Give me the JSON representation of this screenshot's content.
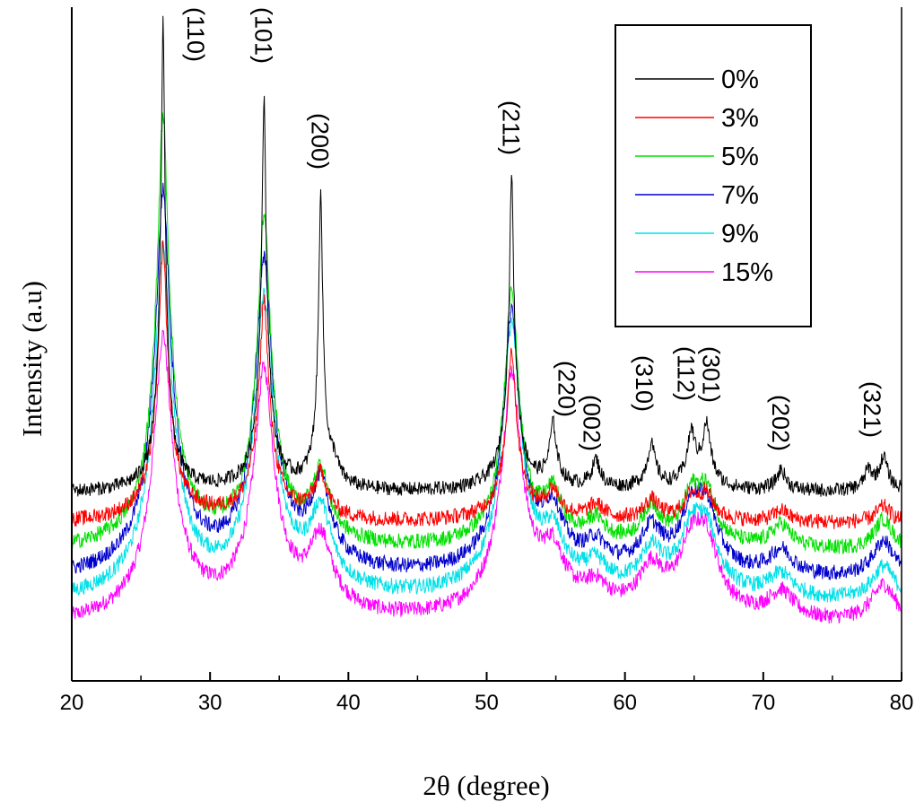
{
  "chart_data": {
    "type": "line",
    "title": "",
    "xlabel": "2θ (degree)",
    "ylabel": "Intensity (a.u)",
    "xlim": [
      20,
      80
    ],
    "xticks": [
      20,
      30,
      40,
      50,
      60,
      70,
      80
    ],
    "yticks_shown": false,
    "grid": false,
    "legend_position": "top-right",
    "peaks": [
      {
        "label": "(110)",
        "x": 26.6
      },
      {
        "label": "(101)",
        "x": 33.9
      },
      {
        "label": "(200)",
        "x": 38.0
      },
      {
        "label": "(211)",
        "x": 51.8
      },
      {
        "label": "(220)",
        "x": 54.8
      },
      {
        "label": "(002)",
        "x": 57.9
      },
      {
        "label": "(310)",
        "x": 61.9
      },
      {
        "label": "(112)",
        "x": 64.8
      },
      {
        "label": "(301)",
        "x": 65.9
      },
      {
        "label": "(202)",
        "x": 71.3
      },
      {
        "label": "(321)",
        "x": 78.7
      }
    ],
    "series": [
      {
        "name": "0%",
        "color": "#000000",
        "baseline": 10,
        "noise": 0.9,
        "peaks": [
          [
            26.6,
            58,
            0.12,
            0.4
          ],
          [
            33.9,
            48,
            0.14,
            0.45
          ],
          [
            38.0,
            37,
            0.12,
            0.35
          ],
          [
            51.8,
            39,
            0.14,
            0.5
          ],
          [
            54.8,
            7.5,
            0.22,
            0.5
          ],
          [
            57.9,
            3.5,
            0.25,
            0.6
          ],
          [
            61.9,
            5.5,
            0.25,
            0.6
          ],
          [
            64.8,
            6.5,
            0.25,
            0.6
          ],
          [
            65.9,
            7.5,
            0.25,
            0.6
          ],
          [
            71.3,
            2.6,
            0.3,
            0.6
          ],
          [
            77.6,
            2.4,
            0.25,
            0.5
          ],
          [
            78.7,
            4.2,
            0.25,
            0.6
          ],
          [
            39.0,
            2.0,
            0.25,
            0.5
          ]
        ]
      },
      {
        "name": "3%",
        "color": "#ff0000",
        "baseline": 6,
        "noise": 1.0,
        "peaks": [
          [
            26.6,
            34,
            0.28,
            0.8
          ],
          [
            33.9,
            27,
            0.3,
            0.8
          ],
          [
            38.0,
            5.5,
            0.4,
            0.9
          ],
          [
            51.8,
            21,
            0.3,
            0.8
          ],
          [
            54.8,
            3.2,
            0.45,
            0.9
          ],
          [
            57.9,
            1.8,
            0.5,
            0.9
          ],
          [
            61.9,
            2.5,
            0.5,
            0.9
          ],
          [
            64.8,
            2.8,
            0.5,
            0.9
          ],
          [
            65.9,
            3.0,
            0.5,
            0.9
          ],
          [
            71.3,
            1.5,
            0.5,
            0.9
          ],
          [
            78.7,
            2.1,
            0.5,
            0.9
          ]
        ]
      },
      {
        "name": "5%",
        "color": "#00e000",
        "baseline": 2.2,
        "noise": 1.0,
        "peaks": [
          [
            26.6,
            53,
            0.4,
            1.0
          ],
          [
            33.9,
            40,
            0.45,
            1.0
          ],
          [
            38.0,
            8.5,
            0.55,
            1.1
          ],
          [
            51.8,
            32,
            0.45,
            1.0
          ],
          [
            54.8,
            5.5,
            0.6,
            1.1
          ],
          [
            57.9,
            2.8,
            0.65,
            1.1
          ],
          [
            61.9,
            4.5,
            0.65,
            1.1
          ],
          [
            64.8,
            5.5,
            0.65,
            1.1
          ],
          [
            65.9,
            6.0,
            0.65,
            1.1
          ],
          [
            71.3,
            3.0,
            0.7,
            1.1
          ],
          [
            78.7,
            4.0,
            0.65,
            1.1
          ]
        ]
      },
      {
        "name": "7%",
        "color": "#0000cc",
        "baseline": -1.5,
        "noise": 1.0,
        "peaks": [
          [
            26.6,
            47,
            0.5,
            1.2
          ],
          [
            33.9,
            38,
            0.55,
            1.2
          ],
          [
            38.0,
            10,
            0.65,
            1.3
          ],
          [
            51.8,
            32,
            0.55,
            1.2
          ],
          [
            54.8,
            6.5,
            0.7,
            1.3
          ],
          [
            57.9,
            3.0,
            0.75,
            1.3
          ],
          [
            61.9,
            5.0,
            0.75,
            1.3
          ],
          [
            64.8,
            6.5,
            0.75,
            1.3
          ],
          [
            65.9,
            7.0,
            0.75,
            1.3
          ],
          [
            71.3,
            3.2,
            0.8,
            1.3
          ],
          [
            78.7,
            4.8,
            0.75,
            1.3
          ]
        ]
      },
      {
        "name": "9%",
        "color": "#00e0e8",
        "baseline": -4.5,
        "noise": 1.0,
        "peaks": [
          [
            26.6,
            43,
            0.55,
            1.3
          ],
          [
            33.9,
            36,
            0.6,
            1.3
          ],
          [
            38.0,
            9.5,
            0.7,
            1.4
          ],
          [
            51.8,
            33,
            0.6,
            1.3
          ],
          [
            54.8,
            6.0,
            0.75,
            1.4
          ],
          [
            57.9,
            3.0,
            0.8,
            1.4
          ],
          [
            61.9,
            5.0,
            0.8,
            1.4
          ],
          [
            64.8,
            6.5,
            0.8,
            1.4
          ],
          [
            65.9,
            7.0,
            0.8,
            1.4
          ],
          [
            71.3,
            3.0,
            0.85,
            1.4
          ],
          [
            78.7,
            4.5,
            0.8,
            1.4
          ]
        ]
      },
      {
        "name": "15%",
        "color": "#ff00ff",
        "baseline": -7.5,
        "noise": 1.0,
        "peaks": [
          [
            26.6,
            35,
            0.6,
            1.4
          ],
          [
            33.9,
            30,
            0.65,
            1.4
          ],
          [
            38.0,
            9.0,
            0.75,
            1.5
          ],
          [
            51.8,
            30,
            0.65,
            1.4
          ],
          [
            54.8,
            6.5,
            0.8,
            1.5
          ],
          [
            57.9,
            3.0,
            0.85,
            1.5
          ],
          [
            61.9,
            5.5,
            0.85,
            1.5
          ],
          [
            64.8,
            7.0,
            0.85,
            1.5
          ],
          [
            65.9,
            8.0,
            0.85,
            1.5
          ],
          [
            71.3,
            3.5,
            0.9,
            1.5
          ],
          [
            78.7,
            5.0,
            0.85,
            1.5
          ]
        ]
      }
    ]
  }
}
